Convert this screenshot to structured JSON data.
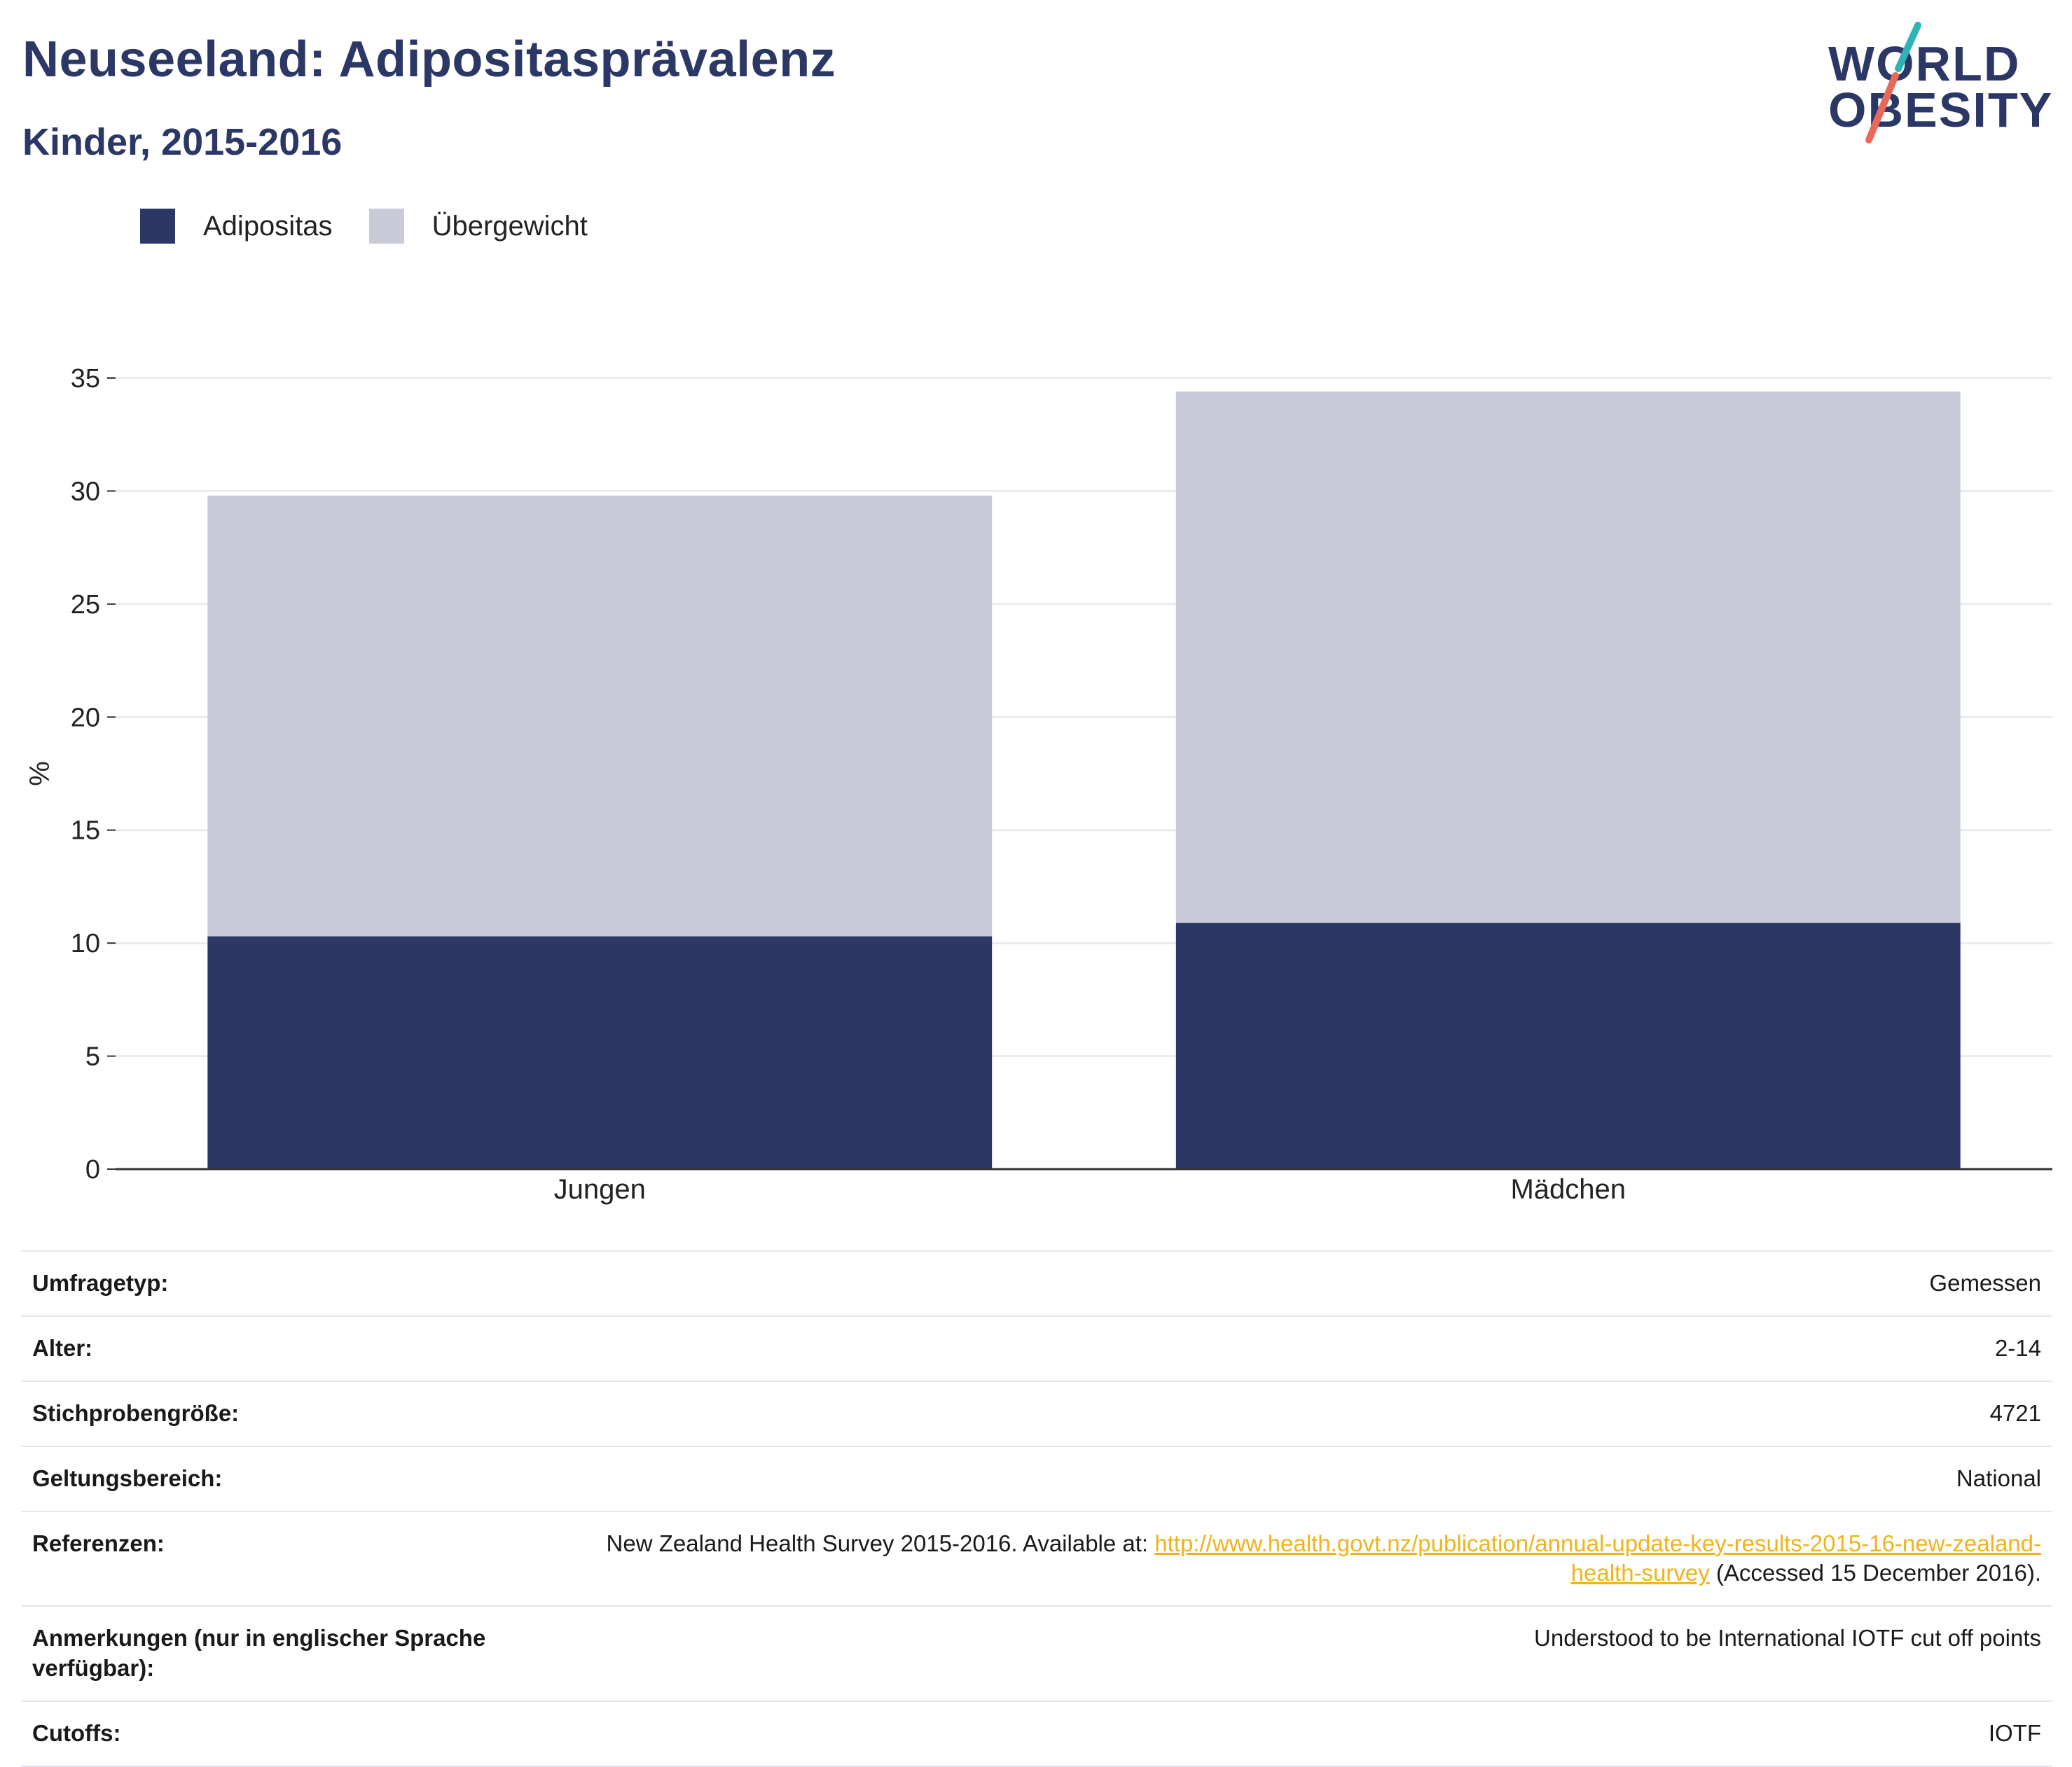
{
  "header": {
    "title": "Neuseeland: Adipositasprävalenz",
    "subtitle": "Kinder, 2015-2016"
  },
  "logo": {
    "line1": "WORLD",
    "line2": "OBESITY",
    "slash_top_color": "#2fb3b5",
    "slash_bottom_color": "#e8695a"
  },
  "legend": {
    "items": [
      {
        "label": "Adipositas",
        "color": "#2b3764"
      },
      {
        "label": "Übergewicht",
        "color": "#c9ccd8"
      }
    ]
  },
  "chart_data": {
    "type": "bar",
    "stacked": true,
    "categories": [
      "Jungen",
      "Mädchen"
    ],
    "series": [
      {
        "name": "Adipositas",
        "values": [
          10.3,
          10.9
        ],
        "color": "#2b3764"
      },
      {
        "name": "Übergewicht",
        "values": [
          19.5,
          23.5
        ],
        "color": "#c9ccd8"
      }
    ],
    "xlabel": "",
    "ylabel": "%",
    "ylim": [
      0,
      35
    ],
    "yticks": [
      "0",
      "5",
      "10",
      "15",
      "20",
      "25",
      "30",
      "35"
    ],
    "grid": true,
    "legend_position": "top-left"
  },
  "info": {
    "rows": [
      {
        "label": "Umfragetyp:",
        "value": "Gemessen"
      },
      {
        "label": "Alter:",
        "value": "2-14"
      },
      {
        "label": "Stichprobengröße:",
        "value": "4721"
      },
      {
        "label": "Geltungsbereich:",
        "value": "National"
      }
    ],
    "references": {
      "label": "Referenzen:",
      "prefix": "New Zealand Health Survey 2015-2016. Available at: ",
      "link": "http://www.health.govt.nz/publication/annual-update-key-results-2015-16-new-zealand-health-survey",
      "suffix": " (Accessed 15 December 2016)."
    },
    "notes": {
      "label": "Anmerkungen (nur in englischer Sprache verfügbar):",
      "value": "Understood to be International IOTF cut off points"
    },
    "cutoffs": {
      "label": "Cutoffs:",
      "value": "IOTF"
    }
  }
}
